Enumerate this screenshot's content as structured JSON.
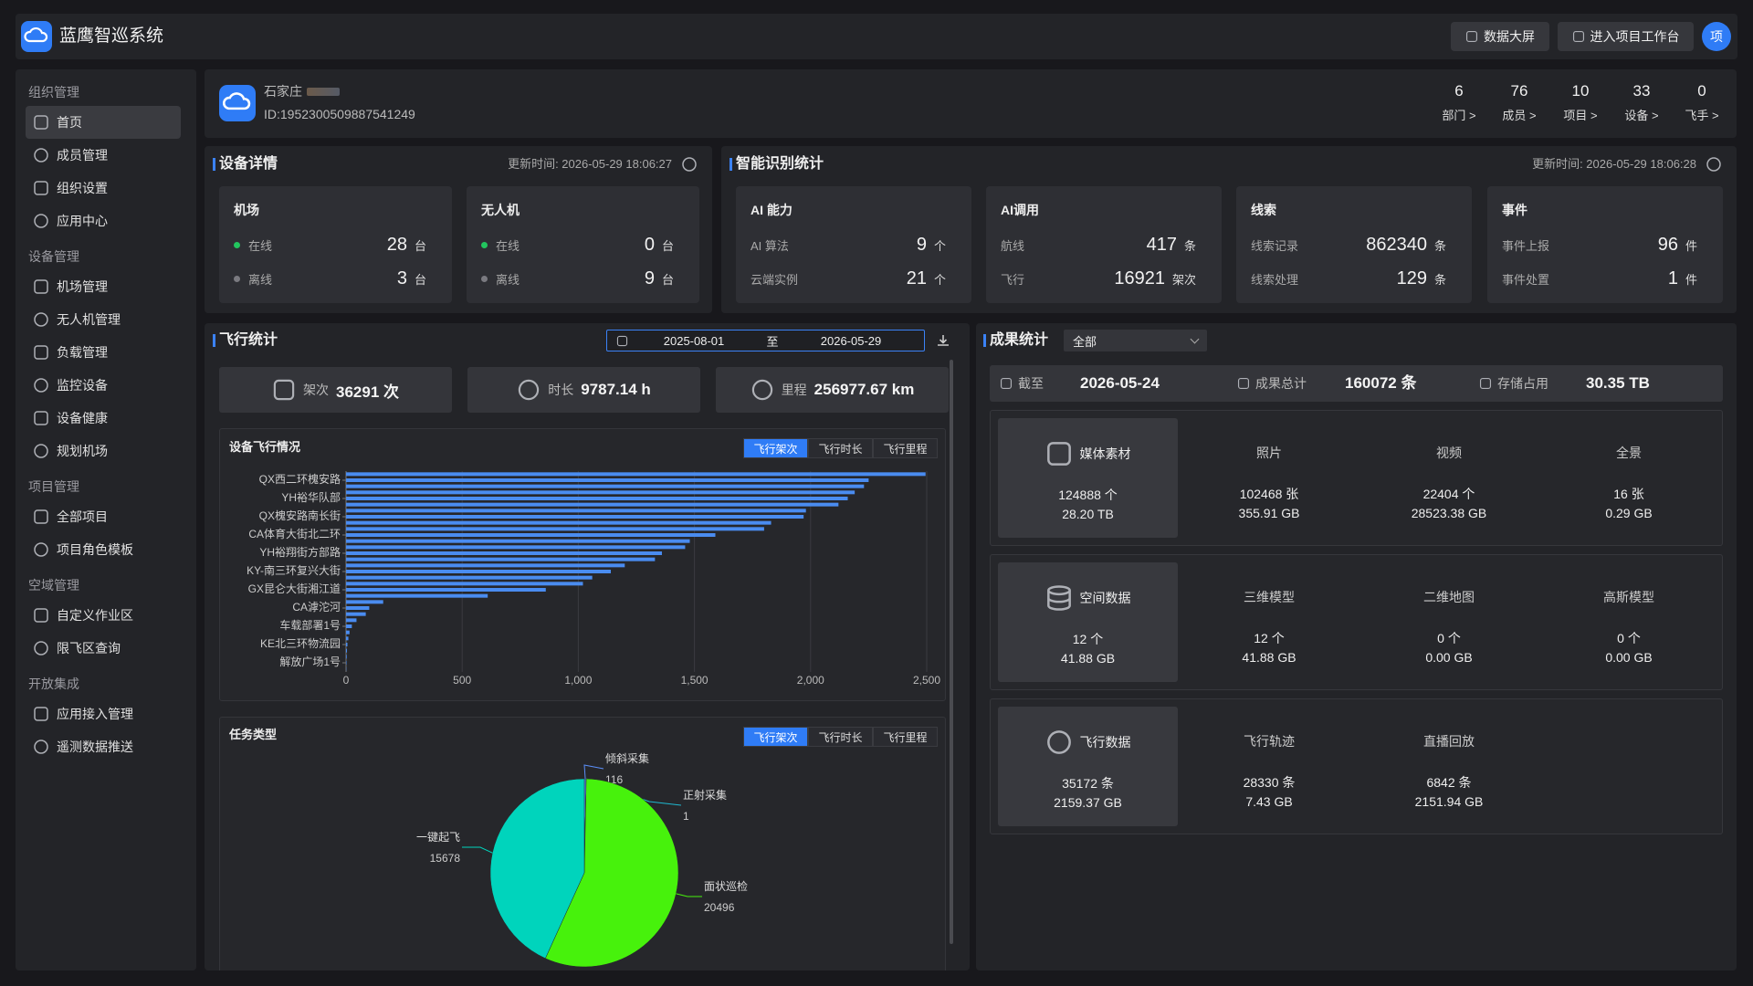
{
  "header": {
    "title": "蓝鹰智巡系统",
    "buttons": [
      "数据大屏",
      "进入项目工作台"
    ],
    "avatar": "项"
  },
  "sidebar": [
    {
      "group": "组织管理",
      "items": [
        "首页",
        "成员管理",
        "组织设置",
        "应用中心"
      ]
    },
    {
      "group": "设备管理",
      "items": [
        "机场管理",
        "无人机管理",
        "负载管理",
        "监控设备",
        "设备健康",
        "规划机场"
      ]
    },
    {
      "group": "项目管理",
      "items": [
        "全部项目",
        "项目角色模板"
      ]
    },
    {
      "group": "空域管理",
      "items": [
        "自定义作业区",
        "限飞区查询"
      ]
    },
    {
      "group": "开放集成",
      "items": [
        "应用接入管理",
        "遥测数据推送"
      ]
    }
  ],
  "org": {
    "name": "石家庄",
    "id": "ID:1952300509887541249",
    "stats": [
      {
        "value": 6,
        "label": "部门 >"
      },
      {
        "value": 76,
        "label": "成员 >"
      },
      {
        "value": 10,
        "label": "项目 >"
      },
      {
        "value": 33,
        "label": "设备 >"
      },
      {
        "value": 0,
        "label": "飞手 >"
      }
    ]
  },
  "device": {
    "title": "设备详情",
    "updated": "更新时间: 2026-05-29 18:06:27",
    "cards": [
      {
        "title": "机场",
        "rows": [
          {
            "label": "在线",
            "value": 28,
            "unit": "台"
          },
          {
            "label": "离线",
            "value": 3,
            "unit": "台"
          }
        ]
      },
      {
        "title": "无人机",
        "rows": [
          {
            "label": "在线",
            "value": 0,
            "unit": "台"
          },
          {
            "label": "离线",
            "value": 9,
            "unit": "台"
          }
        ]
      }
    ]
  },
  "ai": {
    "title": "智能识别统计",
    "updated": "更新时间: 2026-05-29 18:06:28",
    "cards": [
      {
        "title": "AI 能力",
        "rows": [
          {
            "label": "AI 算法",
            "value": 9,
            "unit": "个"
          },
          {
            "label": "云端实例",
            "value": 21,
            "unit": "个"
          }
        ]
      },
      {
        "title": "AI调用",
        "rows": [
          {
            "label": "航线",
            "value": 417,
            "unit": "条"
          },
          {
            "label": "飞行",
            "value": 16921,
            "unit": "架次"
          }
        ]
      },
      {
        "title": "线索",
        "rows": [
          {
            "label": "线索记录",
            "value": 862340,
            "unit": "条"
          },
          {
            "label": "线索处理",
            "value": 129,
            "unit": "条"
          }
        ]
      },
      {
        "title": "事件",
        "rows": [
          {
            "label": "事件上报",
            "value": 96,
            "unit": "件"
          },
          {
            "label": "事件处置",
            "value": 1,
            "unit": "件"
          }
        ]
      }
    ]
  },
  "flight": {
    "title": "飞行统计",
    "date_from": "2025-08-01",
    "date_sep": "至",
    "date_to": "2026-05-29",
    "summary": [
      {
        "label": "架次",
        "value": "36291 次"
      },
      {
        "label": "时长",
        "value": "9787.14 h"
      },
      {
        "label": "里程",
        "value": "256977.67 km"
      }
    ],
    "bar_chart": {
      "type": "bar",
      "orientation": "horizontal",
      "title": "设备飞行情况",
      "tabs": [
        "飞行架次",
        "飞行时长",
        "飞行里程"
      ],
      "categories": [
        null,
        "QX西二环槐安路",
        null,
        null,
        "YH裕华队部",
        null,
        null,
        "QX槐安路南长街",
        null,
        null,
        "CA体育大街北二环",
        null,
        null,
        "YH裕翔街方部路",
        null,
        null,
        "KY-南三环复兴大街",
        null,
        null,
        "GX昆仑大街湘江道",
        null,
        null,
        "CA滹沱河",
        null,
        null,
        "车载部署1号",
        null,
        null,
        "KE北三环物流园",
        null,
        null,
        "解放广场1号",
        null
      ],
      "values": [
        2495,
        2250,
        2230,
        2190,
        2160,
        2120,
        1980,
        1970,
        1830,
        1800,
        1590,
        1480,
        1460,
        1360,
        1330,
        1200,
        1140,
        1060,
        1020,
        860,
        610,
        160,
        100,
        85,
        45,
        25,
        15,
        10,
        6,
        4,
        3,
        2,
        1
      ],
      "color": "#4a8cf0",
      "xlim": [
        0,
        2500
      ],
      "xticks": [
        0,
        500,
        {
          "value": 1000,
          "label": "1,000"
        },
        {
          "value": 1500,
          "label": "1,500"
        },
        {
          "value": 2000,
          "label": "2,000"
        },
        {
          "value": 2500,
          "label": "2,500"
        }
      ],
      "grid": true
    },
    "pie_chart": {
      "type": "pie",
      "title": "任务类型",
      "tabs": [
        "飞行架次",
        "飞行时长",
        "飞行里程"
      ],
      "categories": [
        "倾斜采集",
        "正射采集",
        "面状巡检",
        "一键起飞"
      ],
      "values": [
        116,
        1,
        20496,
        15678
      ],
      "colors": [
        "#5b8ff9",
        "#1fb8d0",
        "#47f20c",
        "#00d4bc"
      ]
    }
  },
  "results": {
    "title": "成果统计",
    "filter": "全部",
    "summary": [
      {
        "label": "截至",
        "value": "2026-05-24"
      },
      {
        "label": "成果总计",
        "value": "160072 条"
      },
      {
        "label": "存储占用",
        "value": "30.35 TB"
      }
    ],
    "groups": [
      {
        "title": "媒体素材",
        "count": "124888 个",
        "size": "28.20 TB",
        "items": [
          {
            "name": "照片",
            "count": "102468 张",
            "size": "355.91 GB"
          },
          {
            "name": "视频",
            "count": "22404 个",
            "size": "28523.38 GB"
          },
          {
            "name": "全景",
            "count": "16 张",
            "size": "0.29 GB"
          }
        ]
      },
      {
        "title": "空间数据",
        "count": "12 个",
        "size": "41.88 GB",
        "items": [
          {
            "name": "三维模型",
            "count": "12 个",
            "size": "41.88 GB"
          },
          {
            "name": "二维地图",
            "count": "0 个",
            "size": "0.00 GB"
          },
          {
            "name": "高斯模型",
            "count": "0 个",
            "size": "0.00 GB"
          }
        ]
      },
      {
        "title": "飞行数据",
        "count": "35172 条",
        "size": "2159.37 GB",
        "items": [
          {
            "name": "飞行轨迹",
            "count": "28330 条",
            "size": "7.43 GB"
          },
          {
            "name": "直播回放",
            "count": "6842 条",
            "size": "2151.94 GB"
          }
        ]
      }
    ]
  }
}
